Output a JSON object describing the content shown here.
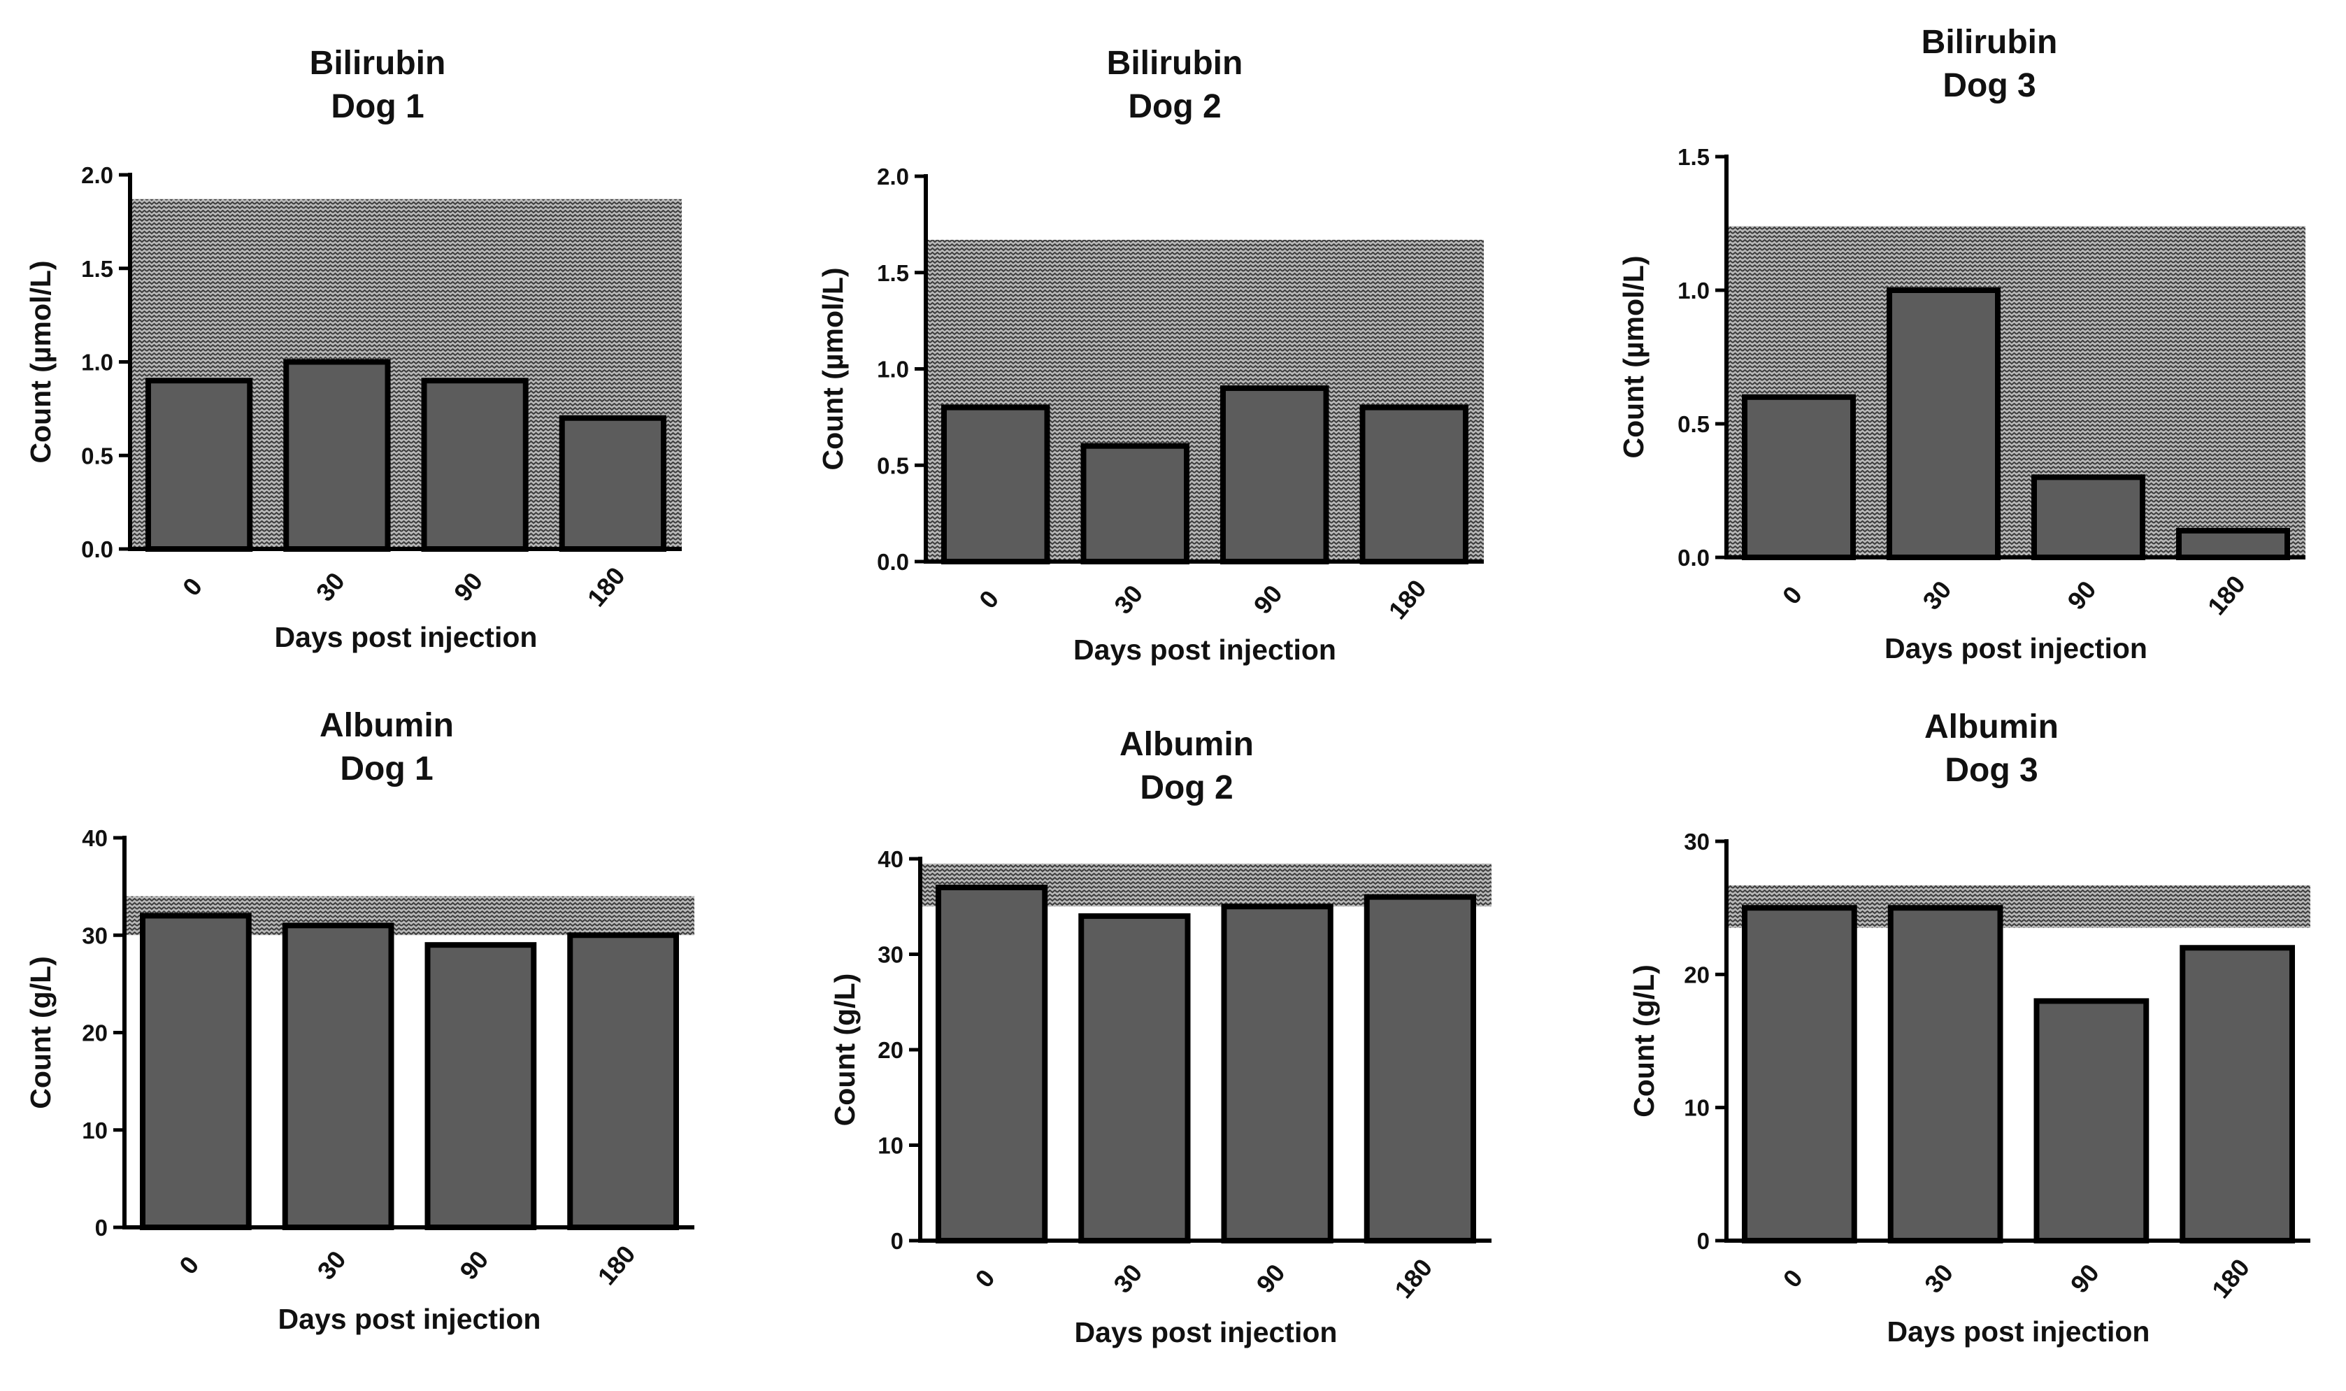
{
  "figure": {
    "description_label": "Bilirubin and albumin per dog"
  },
  "colors": {
    "bar_fill": "#5c5c5c",
    "bar_stroke": "#000000",
    "axis": "#000000",
    "band_fill": "#b9b9b9",
    "band_dots": "#3c3c3c",
    "background": "#ffffff"
  },
  "chart_data": [
    {
      "type": "bar",
      "title_line1": "Bilirubin",
      "title_line2": "Dog 1",
      "xlabel": "Days post injection",
      "ylabel": "Count (µmol/L)",
      "categories": [
        "0",
        "30",
        "90",
        "180"
      ],
      "values": [
        0.9,
        1.0,
        0.9,
        0.7
      ],
      "ylim": [
        0,
        2.0
      ],
      "yticks": [
        "0.0",
        "0.5",
        "1.0",
        "1.5",
        "2.0"
      ],
      "ytick_values": [
        0,
        0.5,
        1.0,
        1.5,
        2.0
      ],
      "reference_range": [
        0,
        1.87
      ]
    },
    {
      "type": "bar",
      "title_line1": "Bilirubin",
      "title_line2": "Dog 2",
      "xlabel": "Days post injection",
      "ylabel": "Count (µmol/L)",
      "categories": [
        "0",
        "30",
        "90",
        "180"
      ],
      "values": [
        0.8,
        0.6,
        0.9,
        0.8
      ],
      "ylim": [
        0,
        2.0
      ],
      "yticks": [
        "0.0",
        "0.5",
        "1.0",
        "1.5",
        "2.0"
      ],
      "ytick_values": [
        0,
        0.5,
        1.0,
        1.5,
        2.0
      ],
      "reference_range": [
        0,
        1.67
      ]
    },
    {
      "type": "bar",
      "title_line1": "Bilirubin",
      "title_line2": "Dog 3",
      "xlabel": "Days post injection",
      "ylabel": "Count (µmol/L)",
      "categories": [
        "0",
        "30",
        "90",
        "180"
      ],
      "values": [
        0.6,
        1.0,
        0.3,
        0.1
      ],
      "ylim": [
        0,
        1.5
      ],
      "yticks": [
        "0.0",
        "0.5",
        "1.0",
        "1.5"
      ],
      "ytick_values": [
        0,
        0.5,
        1.0,
        1.5
      ],
      "reference_range": [
        0,
        1.24
      ]
    },
    {
      "type": "bar",
      "title_line1": "Albumin",
      "title_line2": "Dog 1",
      "xlabel": "Days post injection",
      "ylabel": "Count (g/L)",
      "categories": [
        "0",
        "30",
        "90",
        "180"
      ],
      "values": [
        32,
        31,
        29,
        30
      ],
      "ylim": [
        0,
        40
      ],
      "yticks": [
        "0",
        "10",
        "20",
        "30",
        "40"
      ],
      "ytick_values": [
        0,
        10,
        20,
        30,
        40
      ],
      "reference_range": [
        30,
        34
      ]
    },
    {
      "type": "bar",
      "title_line1": "Albumin",
      "title_line2": "Dog 2",
      "xlabel": "Days post injection",
      "ylabel": "Count (g/L)",
      "categories": [
        "0",
        "30",
        "90",
        "180"
      ],
      "values": [
        37,
        34,
        35,
        36
      ],
      "ylim": [
        0,
        40
      ],
      "yticks": [
        "0",
        "10",
        "20",
        "30",
        "40"
      ],
      "ytick_values": [
        0,
        10,
        20,
        30,
        40
      ],
      "reference_range": [
        35,
        39.5
      ]
    },
    {
      "type": "bar",
      "title_line1": "Albumin",
      "title_line2": "Dog 3",
      "xlabel": "Days post injection",
      "ylabel": "Count (g/L)",
      "categories": [
        "0",
        "30",
        "90",
        "180"
      ],
      "values": [
        25,
        25,
        18,
        22
      ],
      "ylim": [
        0,
        30
      ],
      "yticks": [
        "0",
        "10",
        "20",
        "30"
      ],
      "ytick_values": [
        0,
        10,
        20,
        30
      ],
      "reference_range": [
        23.5,
        26.7
      ]
    }
  ]
}
